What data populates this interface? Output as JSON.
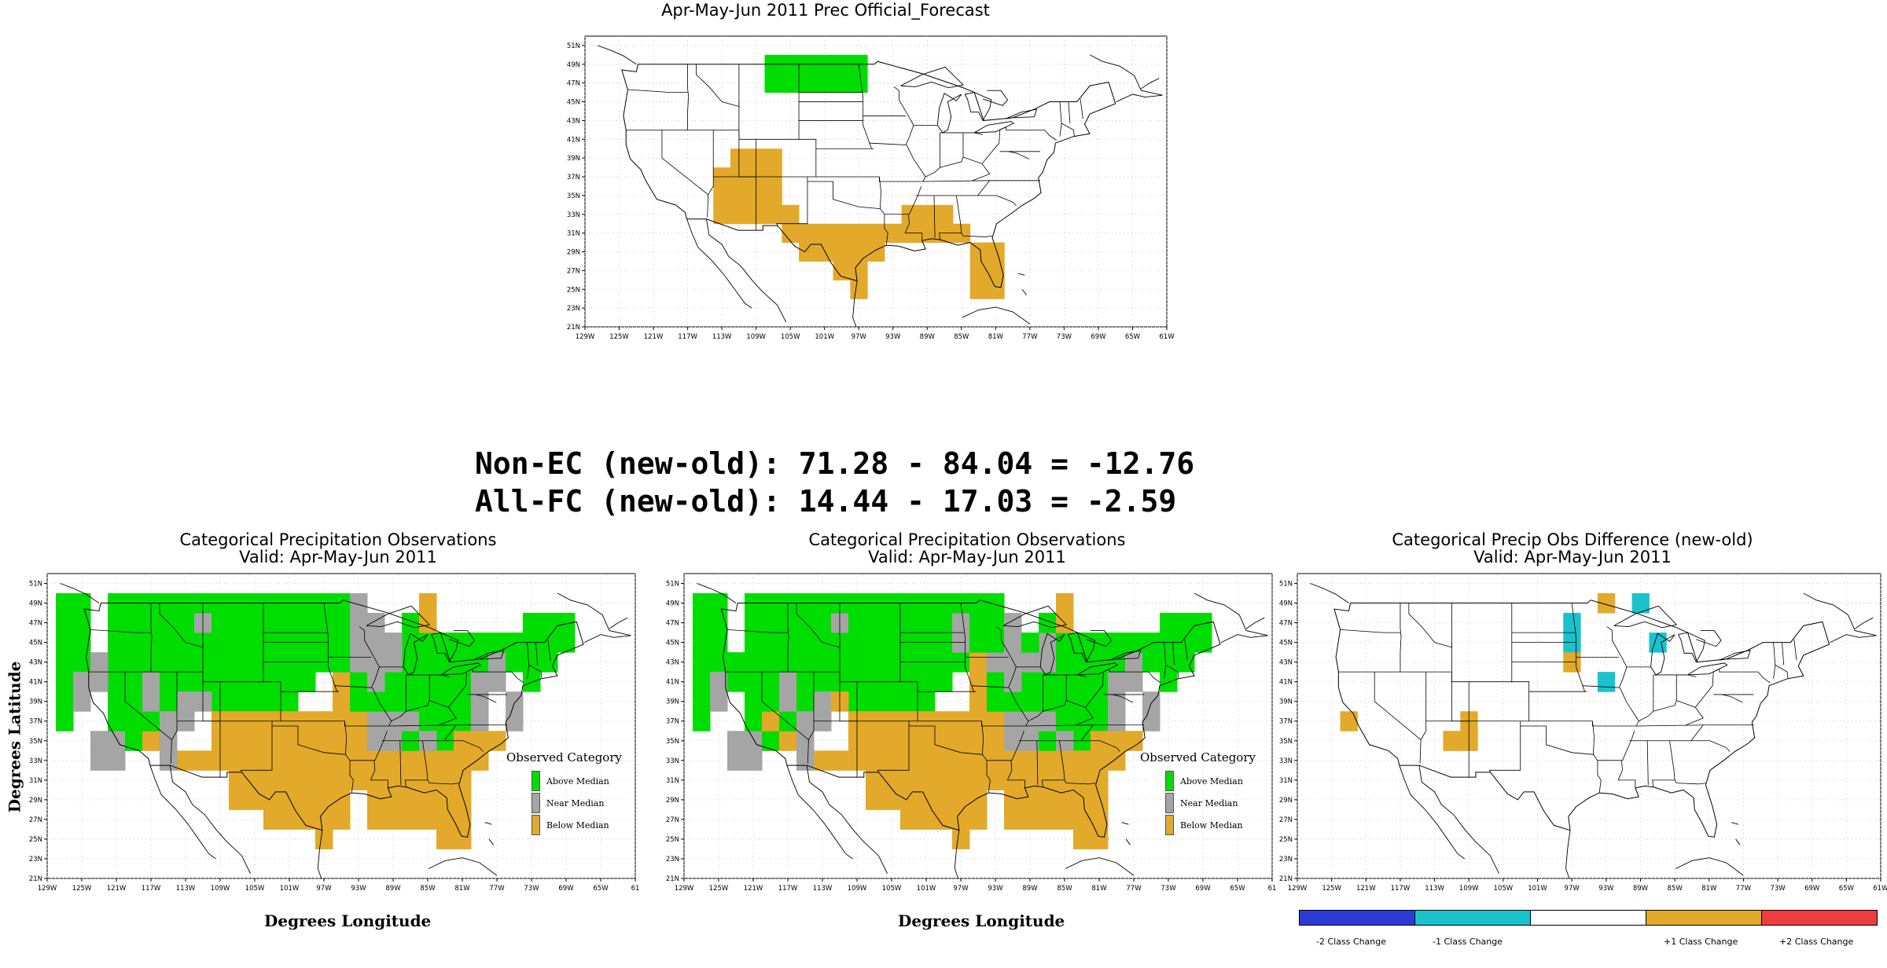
{
  "colors": {
    "above": "#00dd00",
    "near": "#a5a5a5",
    "below": "#e2a92b",
    "minus2": "#2b3bd8",
    "minus1": "#19c2cc",
    "plus2": "#ef3d3d",
    "grid": "#bdbdbd"
  },
  "top_map": {
    "title": "Apr-May-Jun 2011 Prec Official_Forecast"
  },
  "scores": {
    "non_ec": "Non-EC (new-old): 71.28 - 84.04 = -12.76",
    "all_fc": "All-FC (new-old): 14.44 - 17.03 = -2.59"
  },
  "left_map": {
    "title": "Categorical Precipitation Observations",
    "subtitle": "Valid: Apr-May-Jun 2011",
    "xlabel": "Degrees Longitude",
    "ylabel": "Degrees Latitude"
  },
  "middle_map": {
    "title": "Categorical Precipitation Observations",
    "subtitle": "Valid: Apr-May-Jun 2011",
    "xlabel": "Degrees Longitude"
  },
  "right_map": {
    "title": "Categorical Precip Obs Difference (new-old)",
    "subtitle": "Valid: Apr-May-Jun 2011"
  },
  "legend": {
    "title": "Observed Category",
    "above": "Above Median",
    "near": "Near Median",
    "below": "Below Median"
  },
  "diff_legend": {
    "minus2": "-2 Class Change",
    "minus1": "-1 Class Change",
    "plus1": "+1 Class Change",
    "plus2": "+2 Class Change"
  },
  "axes": {
    "lon_ticks": [
      "129W",
      "125W",
      "121W",
      "117W",
      "113W",
      "109W",
      "105W",
      "101W",
      "97W",
      "93W",
      "89W",
      "85W",
      "81W",
      "77W",
      "73W",
      "69W",
      "65W",
      "61W"
    ],
    "lon_ticks_obs": [
      "129W",
      "125W",
      "121W",
      "117W",
      "113W",
      "109W",
      "105W",
      "101W",
      "97W",
      "93W",
      "89W",
      "85W",
      "81W",
      "77W",
      "73W",
      "69W",
      "65W",
      "61"
    ],
    "lat_ticks": [
      "21N",
      "23N",
      "25N",
      "27N",
      "29N",
      "31N",
      "33N",
      "35N",
      "37N",
      "39N",
      "41N",
      "43N",
      "45N",
      "47N",
      "49N",
      "51N"
    ],
    "lon_range": [
      -129,
      -61
    ],
    "lat_range": [
      21,
      52
    ]
  },
  "grids": {
    "forecast": {
      "below": [
        [
          -113,
          37
        ],
        [
          -113,
          35
        ],
        [
          -113,
          33
        ],
        [
          -111,
          39
        ],
        [
          -111,
          37
        ],
        [
          -111,
          35
        ],
        [
          -111,
          33
        ],
        [
          -109,
          39
        ],
        [
          -109,
          37
        ],
        [
          -109,
          35
        ],
        [
          -109,
          33
        ],
        [
          -107,
          39
        ],
        [
          -107,
          37
        ],
        [
          -107,
          35
        ],
        [
          -107,
          33
        ],
        [
          -105,
          33
        ],
        [
          -105,
          31
        ],
        [
          -103,
          31
        ],
        [
          -101,
          31
        ],
        [
          -99,
          31
        ],
        [
          -97,
          31
        ],
        [
          -95,
          31
        ],
        [
          -93,
          31
        ],
        [
          -91,
          31
        ],
        [
          -89,
          31
        ],
        [
          -87,
          31
        ],
        [
          -85,
          31
        ],
        [
          -103,
          29
        ],
        [
          -101,
          29
        ],
        [
          -99,
          29
        ],
        [
          -97,
          29
        ],
        [
          -95,
          29
        ],
        [
          -99,
          27
        ],
        [
          -97,
          27
        ],
        [
          -97,
          25
        ],
        [
          -91,
          33
        ],
        [
          -89,
          33
        ],
        [
          -87,
          33
        ],
        [
          -81,
          29
        ],
        [
          -83,
          29
        ],
        [
          -81,
          27
        ],
        [
          -83,
          27
        ],
        [
          -83,
          25
        ],
        [
          -81,
          25
        ]
      ],
      "above": [
        [
          -107,
          49
        ],
        [
          -105,
          49
        ],
        [
          -103,
          49
        ],
        [
          -101,
          49
        ],
        [
          -99,
          49
        ],
        [
          -97,
          49
        ],
        [
          -107,
          47
        ],
        [
          -105,
          47
        ],
        [
          -103,
          47
        ],
        [
          -101,
          47
        ],
        [
          -99,
          47
        ],
        [
          -97,
          47
        ]
      ]
    },
    "obs_old": {
      "near_cols": [
        [
          -125,
          39,
          41
        ],
        [
          -123,
          33,
          35
        ],
        [
          -121,
          33,
          35
        ],
        [
          -117,
          39,
          41
        ],
        [
          -115,
          33,
          37
        ],
        [
          -113,
          37,
          39
        ],
        [
          -111,
          39,
          39
        ],
        [
          -93,
          43,
          49
        ],
        [
          -91,
          41,
          47
        ],
        [
          -89,
          43,
          45
        ],
        [
          -91,
          35,
          37
        ],
        [
          -89,
          35,
          37
        ],
        [
          -87,
          37,
          37
        ],
        [
          -85,
          35,
          35
        ],
        [
          -79,
          37,
          41
        ],
        [
          -77,
          41,
          43
        ],
        [
          -75,
          37,
          39
        ],
        [
          -123,
          41,
          43
        ],
        [
          -111,
          47,
          47
        ]
      ],
      "below_cols": [
        [
          -107,
          29,
          37
        ],
        [
          -105,
          29,
          37
        ],
        [
          -103,
          27,
          37
        ],
        [
          -101,
          27,
          37
        ],
        [
          -99,
          27,
          37
        ],
        [
          -97,
          25,
          37
        ],
        [
          -95,
          27,
          37
        ],
        [
          -93,
          31,
          37
        ],
        [
          -111,
          33,
          33
        ],
        [
          -109,
          33,
          37
        ],
        [
          -113,
          33,
          33
        ],
        [
          -117,
          35,
          35
        ],
        [
          -91,
          27,
          33
        ],
        [
          -89,
          27,
          33
        ],
        [
          -87,
          27,
          33
        ],
        [
          -85,
          27,
          33
        ],
        [
          -83,
          25,
          33
        ],
        [
          -81,
          25,
          35
        ],
        [
          -79,
          33,
          35
        ],
        [
          -77,
          35,
          35
        ],
        [
          -85,
          47,
          49
        ],
        [
          -95,
          39,
          41
        ]
      ],
      "above_box": [
        [
          -127,
          37,
          49
        ],
        [
          -125,
          43,
          49
        ],
        [
          -121,
          35,
          49
        ],
        [
          -119,
          35,
          49
        ],
        [
          -117,
          35,
          49
        ],
        [
          -115,
          39,
          49
        ],
        [
          -113,
          41,
          49
        ],
        [
          -111,
          41,
          49
        ],
        [
          -109,
          39,
          49
        ],
        [
          -107,
          39,
          49
        ],
        [
          -105,
          39,
          49
        ],
        [
          -103,
          39,
          49
        ],
        [
          -101,
          39,
          49
        ],
        [
          -99,
          41,
          49
        ],
        [
          -97,
          43,
          49
        ],
        [
          -95,
          39,
          49
        ],
        [
          -93,
          35,
          41
        ],
        [
          -91,
          33,
          39
        ],
        [
          -89,
          33,
          41
        ],
        [
          -87,
          33,
          47
        ],
        [
          -85,
          37,
          45
        ],
        [
          -83,
          35,
          45
        ],
        [
          -81,
          37,
          45
        ],
        [
          -79,
          41,
          45
        ],
        [
          -77,
          41,
          45
        ],
        [
          -75,
          43,
          45
        ],
        [
          -73,
          41,
          47
        ],
        [
          -71,
          43,
          47
        ],
        [
          -69,
          45,
          47
        ]
      ]
    }
  }
}
